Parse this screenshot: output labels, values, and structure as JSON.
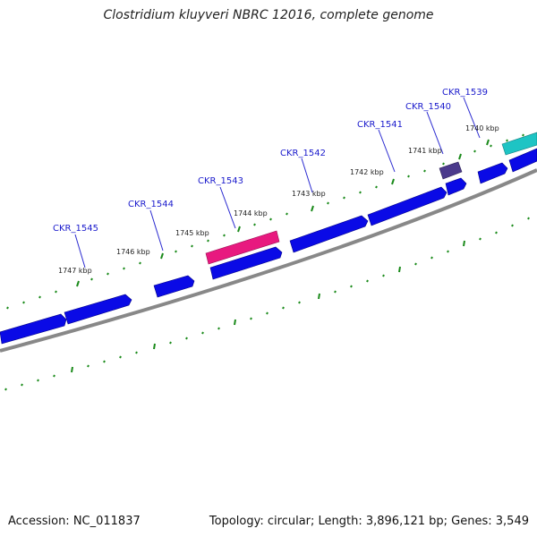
{
  "title": "Clostridium kluyveri NBRC 12016, complete genome",
  "footer": {
    "accession": "Accession: NC_011837",
    "summary": "Topology: circular; Length: 3,896,121 bp; Genes: 3,549"
  },
  "colors": {
    "background": "#ffffff",
    "forward_gene": "#0a0ae6",
    "highlight_gene": "#e8197f",
    "rna_gene": "#1ec4c4",
    "dark_gene": "#4b3a8c",
    "backbone": "#888888",
    "tick": "#1a8a1a",
    "gene_label": "#1a1acc"
  },
  "gene_labels": [
    "CKR_1545",
    "CKR_1544",
    "CKR_1543",
    "CKR_1542",
    "CKR_1541",
    "CKR_1540",
    "CKR_1539"
  ],
  "position_labels": [
    "1747 kbp",
    "1746 kbp",
    "1745 kbp",
    "1744 kbp",
    "1743 kbp",
    "1742 kbp",
    "1741 kbp",
    "1740 kbp"
  ]
}
